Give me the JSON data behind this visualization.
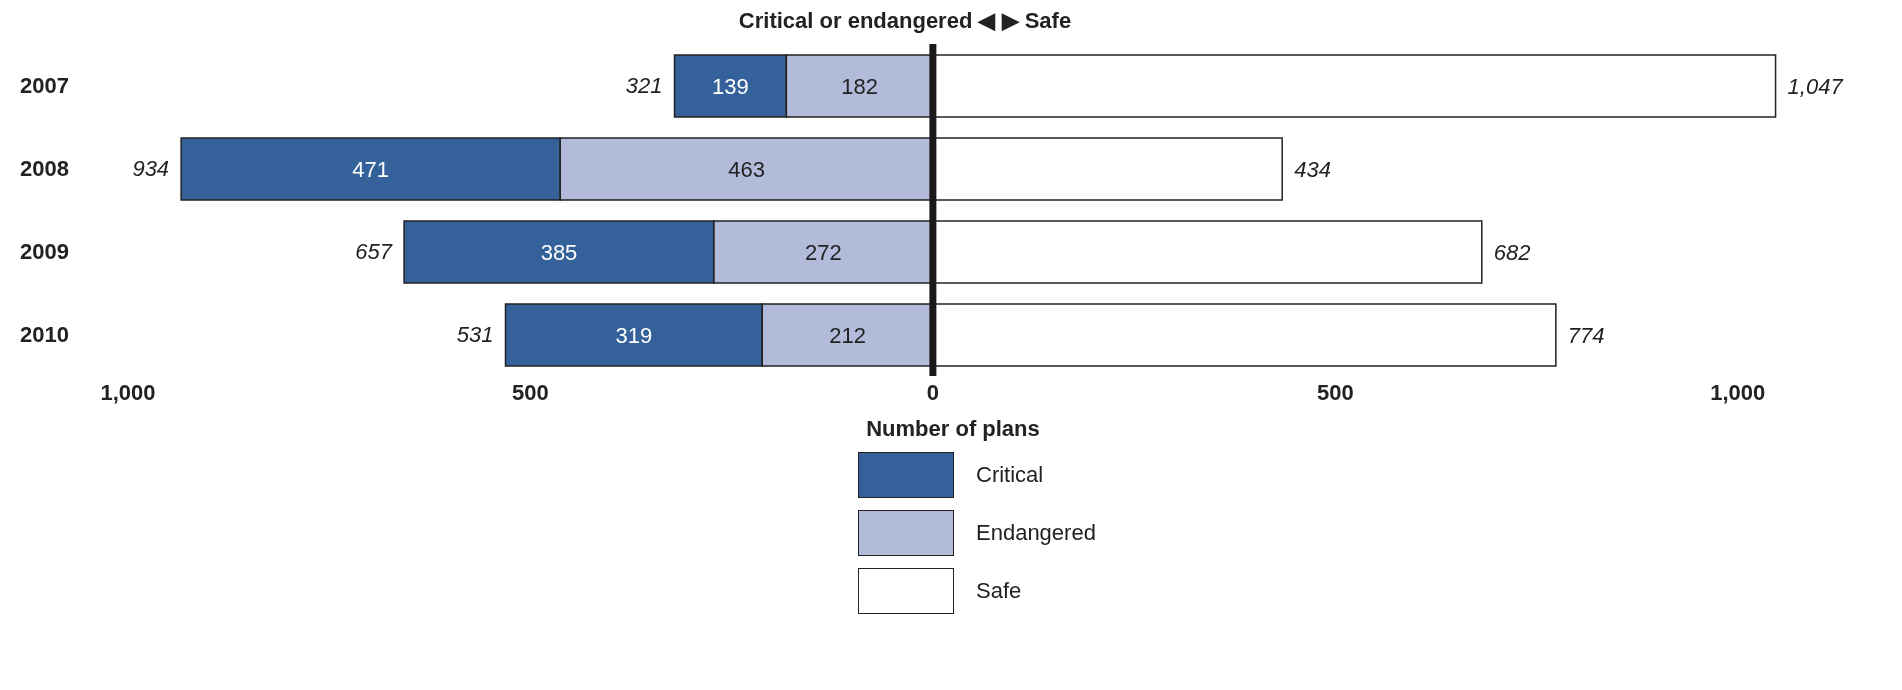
{
  "chart_data": {
    "type": "bar",
    "title": "Critical or endangered ◀ ▶ Safe",
    "xlabel": "Number of plans",
    "orientation": "horizontal",
    "categories": [
      "2007",
      "2008",
      "2009",
      "2010"
    ],
    "series": [
      {
        "name": "Critical",
        "color": "#35619b",
        "values": [
          139,
          471,
          385,
          319
        ],
        "base": [
          -321,
          -934,
          -657,
          -531
        ],
        "value_labels": [
          "139",
          "471",
          "385",
          "319"
        ]
      },
      {
        "name": "Endangered",
        "color": "#b3bbdb",
        "values": [
          182,
          463,
          272,
          212
        ],
        "base": [
          -182,
          -463,
          -272,
          -212
        ],
        "value_labels": [
          "182",
          "463",
          "272",
          "212"
        ]
      },
      {
        "name": "Safe",
        "color": "#ffffff",
        "values": [
          1047,
          434,
          682,
          774
        ],
        "base": [
          0,
          0,
          0,
          0
        ],
        "value_labels": [
          "1,047",
          "434",
          "682",
          "774"
        ]
      }
    ],
    "annotations": [
      {
        "text": "321",
        "x": -321,
        "y": "2007"
      },
      {
        "text": "934",
        "x": -934,
        "y": "2008"
      },
      {
        "text": "657",
        "x": -657,
        "y": "2009"
      },
      {
        "text": "531",
        "x": -531,
        "y": "2010"
      }
    ],
    "xlim": [
      -1000,
      1050
    ],
    "xticks": [
      {
        "value": -1000,
        "label": "1,000"
      },
      {
        "value": -500,
        "label": "500"
      },
      0,
      500,
      {
        "value": 1000,
        "label": "1,000"
      }
    ],
    "ref_lines": [
      {
        "axis": "x",
        "value": 0,
        "color": "#1a1a1a"
      }
    ],
    "legend": "bottom"
  }
}
